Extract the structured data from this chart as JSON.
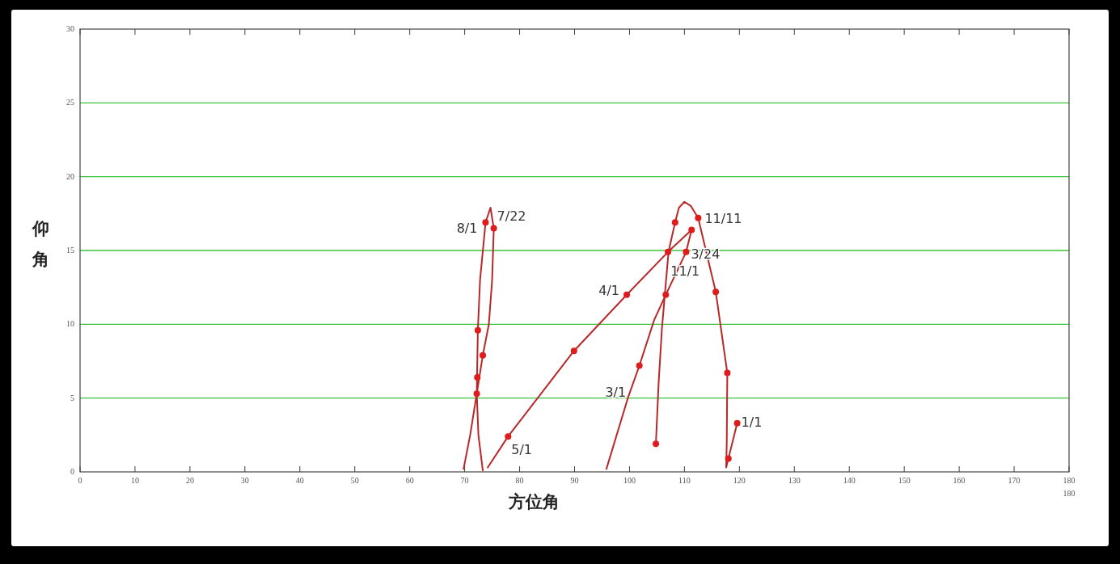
{
  "chart_data": {
    "type": "line",
    "xlabel": "方位角",
    "ylabel": "仰角",
    "xlim": [
      0,
      180
    ],
    "ylim": [
      0,
      30
    ],
    "xticks": [
      0,
      10,
      20,
      30,
      40,
      50,
      60,
      70,
      80,
      90,
      100,
      110,
      120,
      130,
      140,
      150,
      160,
      170,
      180
    ],
    "yticks": [
      0,
      5,
      10,
      15,
      20,
      25,
      30
    ],
    "grid": "y",
    "series": [
      {
        "marker": "none",
        "color": "#b82828",
        "x": [
          95.8,
          99.7,
          101.8,
          104.5,
          106.6,
          110.3,
          111.3,
          107.0,
          99.5,
          89.9,
          77.9,
          74.2,
          null,
          73.3,
          72.5,
          72.2,
          72.4,
          72.8,
          73.8,
          74.7,
          75.3,
          75.0,
          74.4,
          73.3,
          72.2,
          71.0,
          69.8,
          null,
          104.8,
          105.3,
          105.9,
          107.1,
          108.3,
          109.0,
          110.0,
          111.2,
          112.5,
          115.7,
          117.8,
          117.7,
          117.6,
          118.0,
          119.6
        ],
        "values": [
          0.2,
          5.0,
          7.2,
          10.3,
          12.0,
          14.9,
          16.4,
          14.9,
          12.0,
          8.2,
          2.4,
          0.3,
          null,
          0.1,
          2.5,
          5.3,
          9.6,
          13.0,
          16.9,
          17.9,
          16.5,
          13.0,
          10.0,
          7.9,
          5.3,
          2.5,
          0.2,
          null,
          1.9,
          6.0,
          9.7,
          14.9,
          16.9,
          17.9,
          18.3,
          18.0,
          17.2,
          12.2,
          6.7,
          2.0,
          0.3,
          0.9,
          3.3
        ]
      },
      {
        "type": "scatter",
        "marker": "circle",
        "color": "#e01b1b",
        "x": [
          73.8,
          75.3,
          72.4,
          73.3,
          72.3,
          72.2,
          77.9,
          89.9,
          99.5,
          107.0,
          111.3,
          110.3,
          101.8,
          104.8,
          106.6,
          108.3,
          112.5,
          115.7,
          117.8,
          118.0,
          119.6
        ],
        "values": [
          16.9,
          16.5,
          9.6,
          7.9,
          6.4,
          5.3,
          2.4,
          8.2,
          12.0,
          14.9,
          16.4,
          14.9,
          7.2,
          1.9,
          12.0,
          16.9,
          17.2,
          12.2,
          6.7,
          0.9,
          3.3
        ]
      }
    ],
    "annotations": [
      {
        "text": "8/1",
        "x": 73.8,
        "y": 16.9
      },
      {
        "text": "7/22",
        "x": 75.3,
        "y": 16.5
      },
      {
        "text": "11/11",
        "x": 112.5,
        "y": 17.2
      },
      {
        "text": "3/24",
        "x": 110.3,
        "y": 14.9
      },
      {
        "text": "11/1",
        "x": 106.6,
        "y": 12.0
      },
      {
        "text": "4/1",
        "x": 99.5,
        "y": 12.0
      },
      {
        "text": "3/1",
        "x": 99.7,
        "y": 5.0
      },
      {
        "text": "5/1",
        "x": 77.9,
        "y": 2.4
      },
      {
        "text": "1/1",
        "x": 119.6,
        "y": 3.3
      },
      "180"
    ]
  }
}
